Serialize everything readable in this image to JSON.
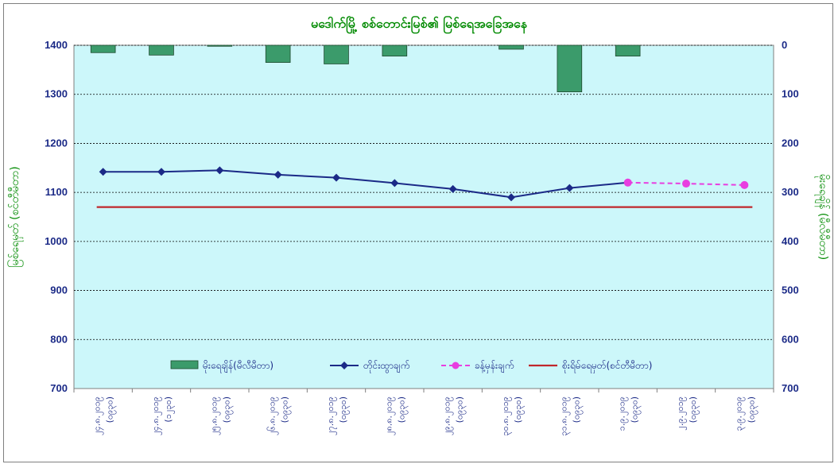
{
  "chart_data": {
    "type": "line",
    "title": "မဒေါက်မြို့ စစ်တောင်းမြစ်၏ မြစ်ရေအခြေအနေ",
    "ylabel": "မြစ်ရေမှတ် (စင်တီမီတာ)",
    "y2label": "မိုးရေချိန် (မီလီမီတာ)",
    "ylim": [
      700,
      1400
    ],
    "y2lim": [
      700,
      0
    ],
    "yticks": [
      700,
      800,
      900,
      1000,
      1100,
      1200,
      1300,
      1400
    ],
    "y2ticks": [
      700,
      600,
      500,
      400,
      300,
      200,
      100,
      0
    ],
    "categories": [
      {
        "date": "၂၄.၈.၂၀၁၉",
        "time": "(၀၉၃၀)"
      },
      {
        "date": "၂၄.၈.၂၀၁၉",
        "time": "(၁၂၃၀)"
      },
      {
        "date": "၂၅.၈.၂၀၁၉",
        "time": "(၀၉၃၀)"
      },
      {
        "date": "၂၆.၈.၂၀၁၉",
        "time": "(၀၉၃၀)"
      },
      {
        "date": "၂၇.၈.၂၀၁၉",
        "time": "(၀၉၃၀)"
      },
      {
        "date": "၂၈.၈.၂၀၁၉",
        "time": "(၀၉၃၀)"
      },
      {
        "date": "၂၉.၈.၂၀၁၉",
        "time": "(၀၉၃၀)"
      },
      {
        "date": "၃၀.၈.၂၀၁၉",
        "time": "(၀၉၃၀)"
      },
      {
        "date": "၃၁.၈.၂၀၁၉",
        "time": "(၀၉၃၀)"
      },
      {
        "date": "၁.၉.၂၀၁၉",
        "time": "(၀၉၃၀)"
      },
      {
        "date": "၂.၉.၂၀၁၉",
        "time": "(၀၉၃၀)"
      },
      {
        "date": "၃.၉.၂၀၁၉",
        "time": "(၀၉၃၀)"
      }
    ],
    "series": [
      {
        "name": "မိုးရေချိန်(မီလီမီတာ)",
        "kind": "bar",
        "axis": "right",
        "color": "#3b9b6b",
        "values": [
          15,
          20,
          2,
          35,
          38,
          22,
          null,
          8,
          95,
          22,
          null,
          null
        ]
      },
      {
        "name": "တိုင်းထွာချက်",
        "kind": "line",
        "axis": "left",
        "color": "#1b2a87",
        "marker": "diamond",
        "values": [
          1142,
          1142,
          1145,
          1136,
          1130,
          1119,
          1107,
          1090,
          1109,
          1120,
          null,
          null
        ]
      },
      {
        "name": "ခန့်မှန်းချက်",
        "kind": "line-dashed",
        "axis": "left",
        "color": "#e83ee0",
        "marker": "circle",
        "values": [
          null,
          null,
          null,
          null,
          null,
          null,
          null,
          null,
          null,
          1120,
          1118,
          1115
        ]
      },
      {
        "name": "စိုးရိမ်ရေမှတ်(စင်တီမီတာ)",
        "kind": "hline",
        "axis": "left",
        "color": "#c0282d",
        "values": [
          1070,
          1070,
          1070,
          1070,
          1070,
          1070,
          1070,
          1070,
          1070,
          1070,
          1070,
          1070
        ]
      }
    ],
    "grid": true,
    "legend": "inside-bottom",
    "plot_background": "#ccf7fa"
  }
}
